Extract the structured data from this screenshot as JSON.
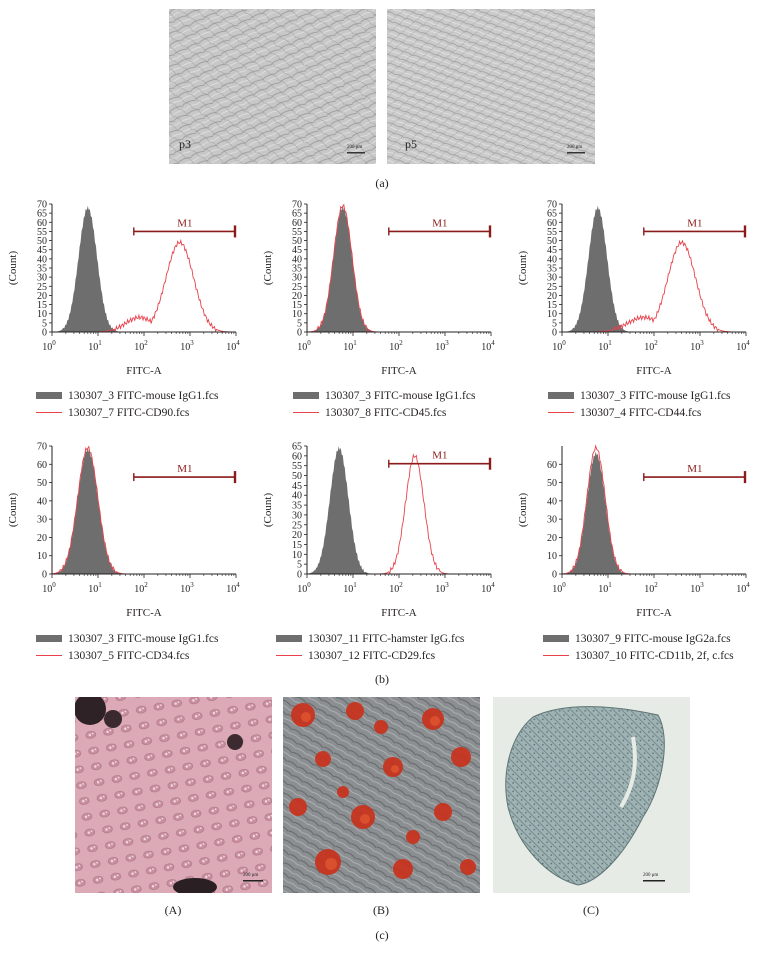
{
  "panel_a": {
    "caption": "(a)",
    "images": [
      {
        "label": "p3",
        "scale_text": "200 μm"
      },
      {
        "label": "p5",
        "scale_text": "200 μm"
      }
    ]
  },
  "panel_b": {
    "caption": "(b)",
    "colors": {
      "control_fill": "#6e6e6e",
      "sample_line": "#e8414b",
      "marker": "#8b1a1a"
    }
  },
  "panel_c": {
    "caption": "(c)",
    "images": [
      {
        "label": "(A)",
        "scale_text": "200 μm"
      },
      {
        "label": "(B)",
        "scale_text": ""
      },
      {
        "label": "(C)",
        "scale_text": "200 μm"
      }
    ]
  },
  "chart_data": [
    {
      "type": "area",
      "xlabel": "FITC-A",
      "ylabel": "(Count)",
      "x_scale": "log",
      "xlim": [
        1,
        10000
      ],
      "ylim": [
        0,
        70
      ],
      "yticks": [
        0,
        5,
        10,
        15,
        20,
        25,
        30,
        35,
        40,
        45,
        50,
        55,
        60,
        65,
        70
      ],
      "xtick_labels": [
        {
          "base": "10",
          "exp": "0"
        },
        {
          "base": "10",
          "exp": "1"
        },
        {
          "base": "10",
          "exp": "2"
        },
        {
          "base": "10",
          "exp": "3"
        },
        {
          "base": "10",
          "exp": "4"
        }
      ],
      "marker": {
        "label": "M1",
        "range": [
          60,
          10000
        ],
        "y": 55
      },
      "series": [
        {
          "name": "130307_3 FITC-mouse IgG1.fcs",
          "style": "filled",
          "peak_x": 6,
          "peak_y": 68,
          "width": 0.2
        },
        {
          "name": "130307_7 FITC-CD90.fcs",
          "style": "line",
          "peak_x": 600,
          "peak_y": 49,
          "width": 0.3,
          "shoulder": {
            "x": 80,
            "y": 8,
            "width": 0.3
          }
        }
      ]
    },
    {
      "type": "area",
      "xlabel": "FITC-A",
      "ylabel": "(Count)",
      "x_scale": "log",
      "xlim": [
        1,
        10000
      ],
      "ylim": [
        0,
        70
      ],
      "yticks": [
        0,
        5,
        10,
        15,
        20,
        25,
        30,
        35,
        40,
        45,
        50,
        55,
        60,
        65,
        70
      ],
      "xtick_labels": [
        {
          "base": "10",
          "exp": "0"
        },
        {
          "base": "10",
          "exp": "1"
        },
        {
          "base": "10",
          "exp": "2"
        },
        {
          "base": "10",
          "exp": "3"
        },
        {
          "base": "10",
          "exp": "4"
        }
      ],
      "marker": {
        "label": "M1",
        "range": [
          60,
          10000
        ],
        "y": 55
      },
      "series": [
        {
          "name": "130307_3 FITC-mouse IgG1.fcs",
          "style": "filled",
          "peak_x": 6,
          "peak_y": 68,
          "width": 0.2
        },
        {
          "name": "130307_8 FITC-CD45.fcs",
          "style": "line",
          "peak_x": 6,
          "peak_y": 69,
          "width": 0.2
        }
      ]
    },
    {
      "type": "area",
      "xlabel": "FITC-A",
      "ylabel": "(Count)",
      "x_scale": "log",
      "xlim": [
        1,
        10000
      ],
      "ylim": [
        0,
        70
      ],
      "yticks": [
        0,
        5,
        10,
        15,
        20,
        25,
        30,
        35,
        40,
        45,
        50,
        55,
        60,
        65,
        70
      ],
      "xtick_labels": [
        {
          "base": "10",
          "exp": "0"
        },
        {
          "base": "10",
          "exp": "1"
        },
        {
          "base": "10",
          "exp": "2"
        },
        {
          "base": "10",
          "exp": "3"
        },
        {
          "base": "10",
          "exp": "4"
        }
      ],
      "marker": {
        "label": "M1",
        "range": [
          60,
          10000
        ],
        "y": 55
      },
      "series": [
        {
          "name": "130307_3 FITC-mouse IgG1.fcs",
          "style": "filled",
          "peak_x": 6,
          "peak_y": 68,
          "width": 0.2
        },
        {
          "name": "130307_4 FITC-CD44.fcs",
          "style": "line",
          "peak_x": 400,
          "peak_y": 49,
          "width": 0.3,
          "shoulder": {
            "x": 60,
            "y": 8,
            "width": 0.35
          }
        }
      ]
    },
    {
      "type": "area",
      "xlabel": "FITC-A",
      "ylabel": "(Count)",
      "x_scale": "log",
      "xlim": [
        1,
        10000
      ],
      "ylim": [
        0,
        70
      ],
      "yticks": [
        0,
        10,
        20,
        30,
        40,
        50,
        60,
        70
      ],
      "xtick_labels": [
        {
          "base": "10",
          "exp": "0"
        },
        {
          "base": "10",
          "exp": "1"
        },
        {
          "base": "10",
          "exp": "2"
        },
        {
          "base": "10",
          "exp": "3"
        },
        {
          "base": "10",
          "exp": "4"
        }
      ],
      "marker": {
        "label": "M1",
        "range": [
          60,
          10000
        ],
        "y": 53
      },
      "series": [
        {
          "name": "130307_3 FITC-mouse IgG1.fcs",
          "style": "filled",
          "peak_x": 6,
          "peak_y": 68,
          "width": 0.22
        },
        {
          "name": "130307_5 FITC-CD34.fcs",
          "style": "line",
          "peak_x": 6,
          "peak_y": 69,
          "width": 0.22
        }
      ]
    },
    {
      "type": "area",
      "xlabel": "FITC-A",
      "ylabel": "(Count)",
      "x_scale": "log",
      "xlim": [
        1,
        10000
      ],
      "ylim": [
        0,
        65
      ],
      "yticks": [
        0,
        5,
        10,
        15,
        20,
        25,
        30,
        35,
        40,
        45,
        50,
        55,
        60,
        65
      ],
      "xtick_labels": [
        {
          "base": "10",
          "exp": "0"
        },
        {
          "base": "10",
          "exp": "1"
        },
        {
          "base": "10",
          "exp": "2"
        },
        {
          "base": "10",
          "exp": "3"
        },
        {
          "base": "10",
          "exp": "4"
        }
      ],
      "marker": {
        "label": "M1",
        "range": [
          60,
          10000
        ],
        "y": 56
      },
      "series": [
        {
          "name": "130307_11 FITC-hamster IgG.fcs",
          "style": "filled",
          "peak_x": 5,
          "peak_y": 64,
          "width": 0.2
        },
        {
          "name": "130307_12 FITC-CD29.fcs",
          "style": "line",
          "peak_x": 220,
          "peak_y": 60,
          "width": 0.2
        }
      ]
    },
    {
      "type": "area",
      "xlabel": "FITC-A",
      "ylabel": "(Count)",
      "x_scale": "log",
      "xlim": [
        1,
        10000
      ],
      "ylim": [
        0,
        70
      ],
      "yticks": [
        0,
        10,
        20,
        30,
        40,
        50,
        60
      ],
      "xtick_labels": [
        {
          "base": "10",
          "exp": "0"
        },
        {
          "base": "10",
          "exp": "1"
        },
        {
          "base": "10",
          "exp": "2"
        },
        {
          "base": "10",
          "exp": "3"
        },
        {
          "base": "10",
          "exp": "4"
        }
      ],
      "marker": {
        "label": "M1",
        "range": [
          60,
          10000
        ],
        "y": 53
      },
      "series": [
        {
          "name": "130307_9 FITC-mouse IgG2a.fcs",
          "style": "filled",
          "peak_x": 5.5,
          "peak_y": 66,
          "width": 0.2
        },
        {
          "name": "130307_10 FITC-CD11b, 2f, c.fcs",
          "style": "line",
          "peak_x": 5.5,
          "peak_y": 69,
          "width": 0.2
        }
      ]
    }
  ]
}
